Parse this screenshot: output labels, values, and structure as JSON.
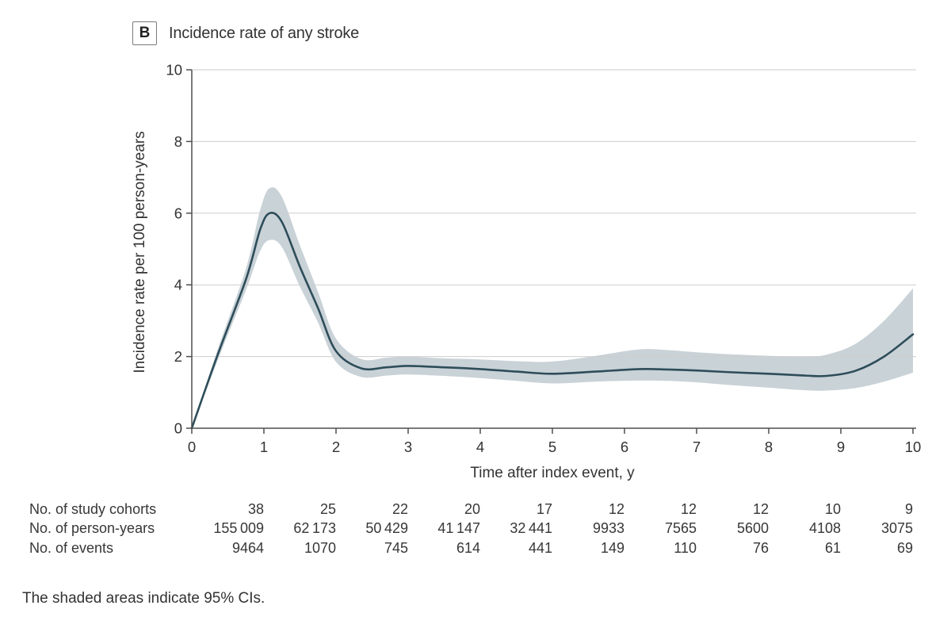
{
  "figure": {
    "panel_label": "B",
    "title": "Incidence rate of any stroke",
    "footnote": "The shaded areas indicate 95% CIs."
  },
  "chart_data": {
    "type": "line",
    "title": "Incidence rate of any stroke",
    "xlabel": "Time after index event, y",
    "ylabel": "Incidence rate per 100 person-years",
    "xlim": [
      0,
      10
    ],
    "ylim": [
      0,
      10
    ],
    "xticks": [
      0,
      1,
      2,
      3,
      4,
      5,
      6,
      7,
      8,
      9,
      10
    ],
    "yticks": [
      0,
      2,
      4,
      6,
      8,
      10
    ],
    "grid": "horizontal",
    "legend": "none",
    "series": [
      {
        "name": "Incidence rate of any stroke (95% CI band)",
        "x": [
          0,
          0.35,
          0.75,
          0.95,
          1.08,
          1.25,
          1.5,
          1.75,
          2.0,
          2.35,
          2.7,
          3.0,
          3.5,
          4.0,
          4.5,
          5.0,
          5.6,
          6.2,
          6.6,
          7.0,
          7.5,
          8.0,
          8.5,
          8.8,
          9.2,
          9.6,
          10.0
        ],
        "mean": [
          0,
          2.0,
          4.15,
          5.55,
          6.0,
          5.75,
          4.5,
          3.35,
          2.15,
          1.67,
          1.7,
          1.74,
          1.7,
          1.65,
          1.58,
          1.52,
          1.58,
          1.65,
          1.64,
          1.61,
          1.56,
          1.52,
          1.47,
          1.46,
          1.6,
          2.0,
          2.62
        ],
        "lower": [
          0,
          1.85,
          3.85,
          4.95,
          5.25,
          5.05,
          3.95,
          2.95,
          1.85,
          1.43,
          1.47,
          1.5,
          1.46,
          1.4,
          1.32,
          1.25,
          1.3,
          1.33,
          1.32,
          1.28,
          1.2,
          1.13,
          1.06,
          1.05,
          1.12,
          1.3,
          1.55
        ],
        "upper": [
          0,
          2.15,
          4.45,
          6.1,
          6.7,
          6.45,
          5.1,
          3.8,
          2.5,
          1.93,
          1.97,
          2.0,
          1.95,
          1.92,
          1.87,
          1.86,
          2.02,
          2.2,
          2.18,
          2.12,
          2.06,
          2.02,
          2.0,
          2.05,
          2.35,
          3.0,
          3.9
        ]
      }
    ],
    "colors": {
      "line": "#2e4d5a",
      "band": "#c9d2d7",
      "grid": "#cdcdcd",
      "axis": "#4f4f4f",
      "text": "#333333"
    }
  },
  "risk_table": {
    "rows": [
      {
        "label": "No. of study cohorts",
        "values": [
          "38",
          "25",
          "22",
          "20",
          "17",
          "12",
          "12",
          "12",
          "10",
          "9"
        ]
      },
      {
        "label": "No. of person-years",
        "values": [
          "155 009",
          "62 173",
          "50 429",
          "41 147",
          "32 441",
          "9933",
          "7565",
          "5600",
          "4108",
          "3075"
        ]
      },
      {
        "label": "No. of events",
        "values": [
          "9464",
          "1070",
          "745",
          "614",
          "441",
          "149",
          "110",
          "76",
          "61",
          "69"
        ]
      }
    ]
  }
}
